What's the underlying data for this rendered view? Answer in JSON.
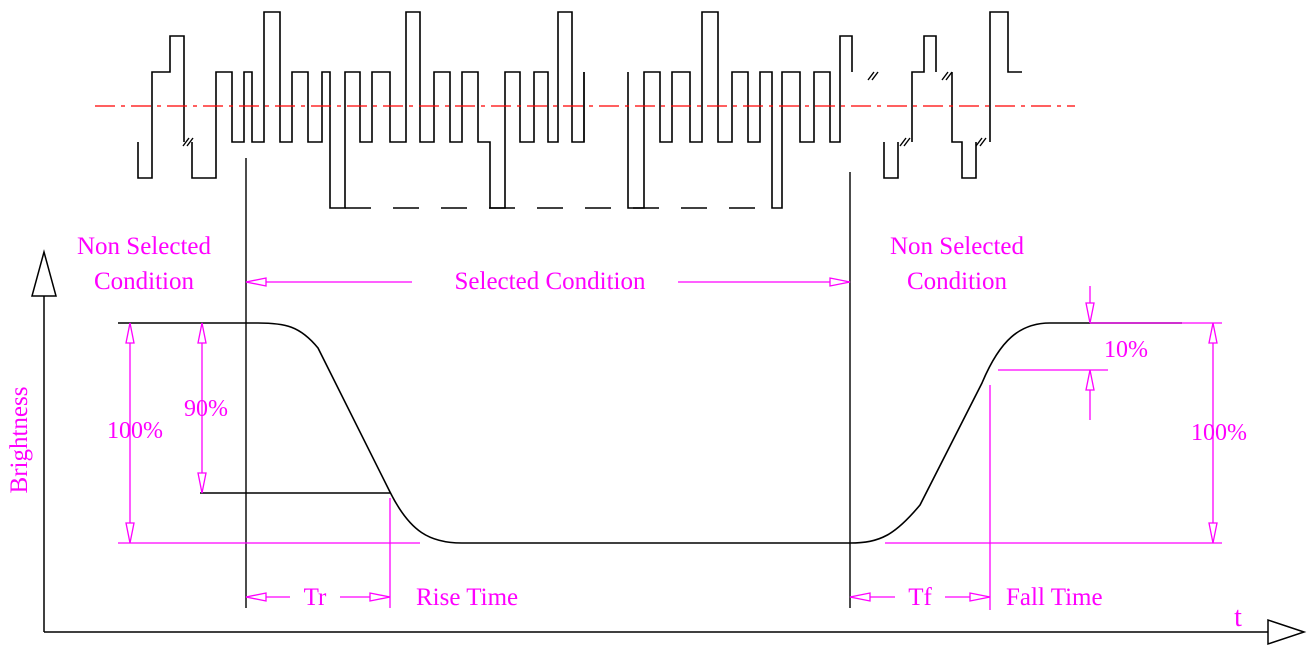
{
  "colors": {
    "annotation": "#ff00ff",
    "trace": "#000000",
    "center_line": "#ff0000",
    "background": "#ffffff"
  },
  "axes": {
    "y_label": "Brightness",
    "x_label": "t"
  },
  "regions": {
    "left_non_selected": [
      "Non Selected",
      "Condition"
    ],
    "selected": "Selected Condition",
    "right_non_selected": [
      "Non Selected",
      "Condition"
    ]
  },
  "levels": {
    "left_full": "100%",
    "left_ninety": "90%",
    "right_ten": "10%",
    "right_full": "100%"
  },
  "timing": {
    "rise_symbol": "Tr",
    "rise_label": "Rise Time",
    "fall_symbol": "Tf",
    "fall_label": "Fall Time"
  }
}
